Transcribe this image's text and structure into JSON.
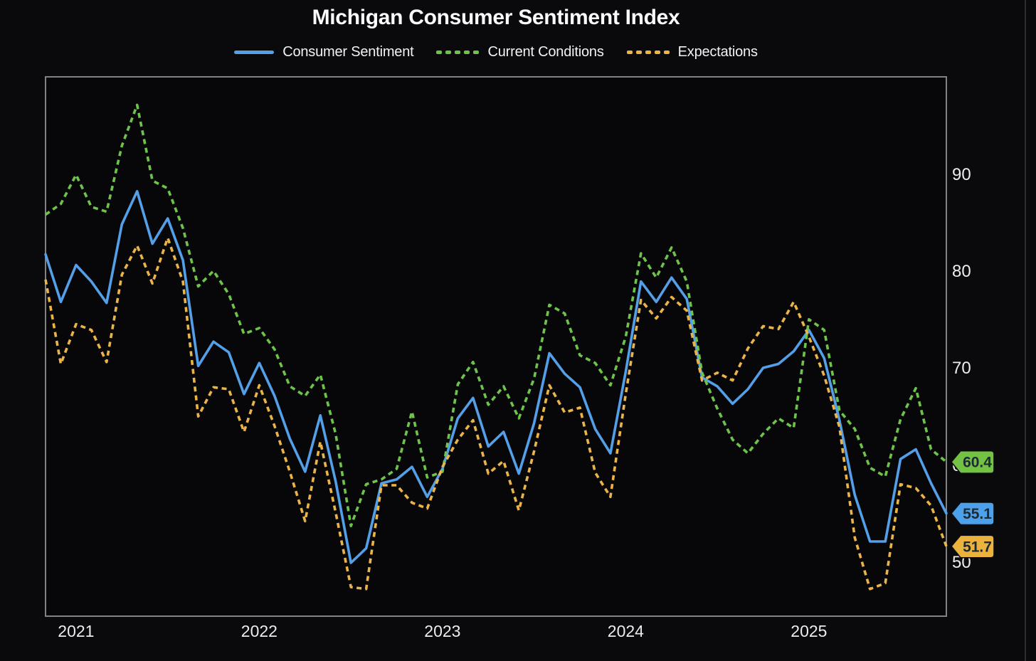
{
  "page": {
    "background": "#0a0a0d"
  },
  "header": {
    "title": "Michigan Consumer Sentiment Index"
  },
  "legend": [
    {
      "label": "Consumer Sentiment",
      "color": "#54a0e8",
      "style": "solid"
    },
    {
      "label": "Current Conditions",
      "color": "#6ec34b",
      "style": "dashed"
    },
    {
      "label": "Expectations",
      "color": "#ebb446",
      "style": "dashed"
    }
  ],
  "chart_data": {
    "type": "line",
    "title": "Michigan Consumer Sentiment Index",
    "grid": false,
    "legend_position": "top",
    "y_axis_side": "right",
    "ylim": [
      44.5,
      100.1
    ],
    "y_ticks": [
      90,
      80,
      70,
      60,
      50
    ],
    "x_ticks": [
      "2021",
      "2022",
      "2023",
      "2024",
      "2025"
    ],
    "x": [
      "2020-10",
      "2020-11",
      "2020-12",
      "2021-01",
      "2021-02",
      "2021-03",
      "2021-04",
      "2021-05",
      "2021-06",
      "2021-07",
      "2021-08",
      "2021-09",
      "2021-10",
      "2021-11",
      "2021-12",
      "2022-01",
      "2022-02",
      "2022-03",
      "2022-04",
      "2022-05",
      "2022-06",
      "2022-07",
      "2022-08",
      "2022-09",
      "2022-10",
      "2022-11",
      "2022-12",
      "2023-01",
      "2023-02",
      "2023-03",
      "2023-04",
      "2023-05",
      "2023-06",
      "2023-07",
      "2023-08",
      "2023-09",
      "2023-10",
      "2023-11",
      "2023-12",
      "2024-01",
      "2024-02",
      "2024-03",
      "2024-04",
      "2024-05",
      "2024-06",
      "2024-07",
      "2024-08",
      "2024-09",
      "2024-10",
      "2024-11",
      "2024-12",
      "2025-01",
      "2025-02",
      "2025-03",
      "2025-04",
      "2025-05",
      "2025-06",
      "2025-07",
      "2025-08",
      "2025-09"
    ],
    "series": [
      {
        "name": "Consumer Sentiment",
        "color": "#54a0e8",
        "dash": false,
        "values": [
          81.8,
          76.9,
          80.7,
          79.0,
          76.8,
          84.9,
          88.3,
          82.9,
          85.5,
          81.2,
          70.3,
          72.8,
          71.7,
          67.4,
          70.6,
          67.2,
          62.8,
          59.4,
          65.2,
          58.4,
          50.0,
          51.5,
          58.2,
          58.6,
          59.9,
          56.8,
          59.7,
          64.9,
          67.0,
          62.0,
          63.5,
          59.2,
          64.4,
          71.6,
          69.5,
          68.1,
          63.8,
          61.3,
          69.7,
          79.0,
          76.9,
          79.4,
          77.2,
          69.1,
          68.2,
          66.4,
          67.9,
          70.1,
          70.5,
          71.8,
          74.0,
          71.1,
          64.7,
          57.0,
          52.2,
          52.2,
          60.7,
          61.7,
          58.2,
          55.1
        ]
      },
      {
        "name": "Current Conditions",
        "color": "#6ec34b",
        "dash": true,
        "values": [
          85.9,
          87.0,
          90.0,
          86.7,
          86.2,
          93.0,
          97.2,
          89.4,
          88.6,
          84.5,
          78.5,
          80.1,
          77.7,
          73.6,
          74.2,
          72.0,
          68.2,
          67.2,
          69.4,
          63.3,
          53.8,
          58.1,
          58.6,
          59.7,
          65.6,
          58.8,
          59.4,
          68.4,
          70.7,
          66.3,
          68.2,
          64.9,
          69.0,
          76.6,
          75.7,
          71.4,
          70.6,
          68.3,
          73.3,
          81.9,
          79.4,
          82.5,
          79.0,
          69.6,
          65.9,
          62.7,
          61.3,
          63.3,
          64.9,
          63.9,
          75.1,
          74.0,
          65.7,
          63.8,
          59.8,
          58.9,
          64.8,
          68.0,
          61.7,
          60.4
        ]
      },
      {
        "name": "Expectations",
        "color": "#ebb446",
        "dash": true,
        "values": [
          79.2,
          70.5,
          74.6,
          74.0,
          70.7,
          79.7,
          82.7,
          78.8,
          83.5,
          79.0,
          65.1,
          68.1,
          67.9,
          63.5,
          68.3,
          64.1,
          59.4,
          54.3,
          62.5,
          55.2,
          47.5,
          47.3,
          58.0,
          58.0,
          56.2,
          55.6,
          59.9,
          62.7,
          64.7,
          59.2,
          60.5,
          55.4,
          61.5,
          68.3,
          65.5,
          66.0,
          59.3,
          56.8,
          67.4,
          77.1,
          75.2,
          77.4,
          76.0,
          68.8,
          69.6,
          68.8,
          72.1,
          74.4,
          74.1,
          76.9,
          73.3,
          69.3,
          64.0,
          52.6,
          47.3,
          47.9,
          58.1,
          57.7,
          55.9,
          51.7
        ]
      }
    ],
    "end_labels": [
      {
        "value": "60.4",
        "series": "Current Conditions",
        "color": "#74c244",
        "text_color": "#1d2933"
      },
      {
        "value": "55.1",
        "series": "Consumer Sentiment",
        "color": "#4da1ea",
        "text_color": "#1d2933"
      },
      {
        "value": "51.7",
        "series": "Expectations",
        "color": "#ecb23e",
        "text_color": "#1d2933"
      }
    ]
  }
}
